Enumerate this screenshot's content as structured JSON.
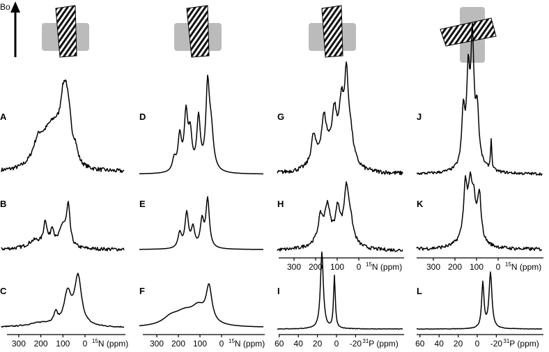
{
  "header": {
    "field_label": "Bo"
  },
  "panels": [
    {
      "label": "A"
    },
    {
      "label": "B"
    },
    {
      "label": "C"
    },
    {
      "label": "D"
    },
    {
      "label": "E"
    },
    {
      "label": "F"
    },
    {
      "label": "G"
    },
    {
      "label": "H"
    },
    {
      "label": "I"
    },
    {
      "label": "J"
    },
    {
      "label": "K"
    },
    {
      "label": "L"
    }
  ],
  "axes": [
    {
      "ticks": [
        300,
        200,
        100,
        0
      ],
      "unit_prefix": "15",
      "unit": "N (ppm)"
    },
    {
      "ticks": [
        300,
        200,
        100,
        0
      ],
      "unit_prefix": "15",
      "unit": "N (ppm)"
    },
    {
      "ticks": [
        300,
        200,
        100,
        0
      ],
      "unit_prefix": "15",
      "unit": "N (ppm)"
    },
    {
      "ticks": [
        60,
        40,
        20,
        0,
        -20
      ],
      "unit_prefix": "31",
      "unit": "P (ppm)"
    },
    {
      "ticks": [
        300,
        200,
        100,
        0
      ],
      "unit_prefix": "15",
      "unit": "N (ppm)"
    },
    {
      "ticks": [
        60,
        40,
        20,
        0,
        -20
      ],
      "unit_prefix": "31",
      "unit": "P (ppm)"
    }
  ]
}
